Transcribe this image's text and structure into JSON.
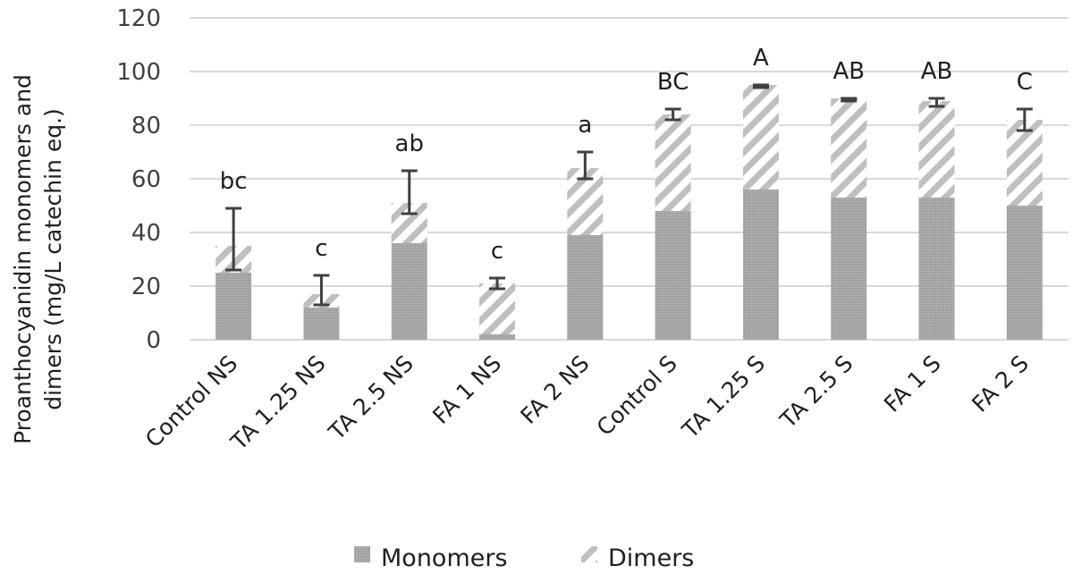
{
  "chart_data": {
    "type": "bar",
    "stacked": true,
    "categories": [
      "Control NS",
      "TA 1.25 NS",
      "TA 2.5 NS",
      "FA 1 NS",
      "FA 2 NS",
      "Control S",
      "TA 1.25 S",
      "TA 2.5 S",
      "FA 1 S",
      "FA 2 S"
    ],
    "series": [
      {
        "name": "Monomers",
        "values": [
          25,
          12,
          36,
          2,
          39,
          48,
          56,
          53,
          53,
          50
        ],
        "color": "#a6a6a6"
      },
      {
        "name": "Dimers",
        "values": [
          10,
          5,
          15,
          19,
          25,
          36,
          39,
          37,
          36,
          32
        ],
        "color": "#bfbfbf"
      }
    ],
    "error_bars": [
      {
        "low": 26,
        "high": 49
      },
      {
        "low": 13,
        "high": 24
      },
      {
        "low": 47,
        "high": 63
      },
      {
        "low": 19,
        "high": 23
      },
      {
        "low": 60,
        "high": 70
      },
      {
        "low": 82,
        "high": 86
      },
      {
        "low": 94,
        "high": 95
      },
      {
        "low": 89,
        "high": 90
      },
      {
        "low": 87,
        "high": 90
      },
      {
        "low": 78,
        "high": 86
      }
    ],
    "significance_letters": [
      "bc",
      "c",
      "ab",
      "c",
      "a",
      "BC",
      "A",
      "AB",
      "AB",
      "C"
    ],
    "ylabel_line1": "Proanthocyanidin monomers and",
    "ylabel_line2": "dimers (mg/L catechin eq.)",
    "xlabel": "",
    "ylim": [
      0,
      120
    ],
    "yticks": [
      "0",
      "20",
      "40",
      "60",
      "80",
      "100",
      "120"
    ],
    "grid": true,
    "legend_position": "bottom-center"
  }
}
